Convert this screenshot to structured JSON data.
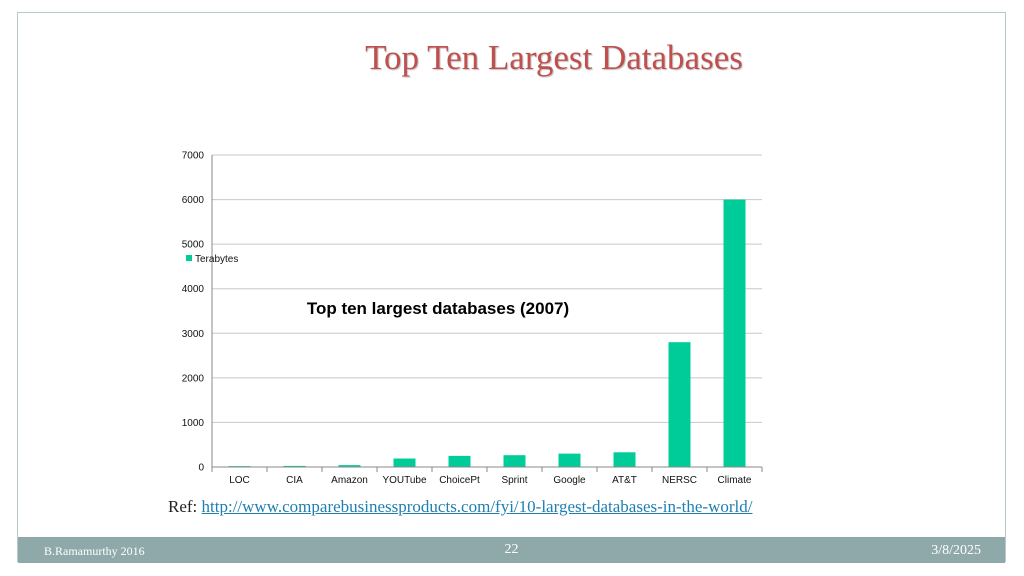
{
  "slide": {
    "title": "Top Ten Largest Databases",
    "ref_label": "Ref:",
    "ref_link": "http://www.comparebusinessproducts.com/fyi/10-largest-databases-in-the-world/",
    "footer_left": "B.Ramamurthy 2016",
    "footer_center": "22",
    "footer_right": "3/8/2025"
  },
  "colors": {
    "bar": "#00cc99",
    "grid": "#c8c8c8",
    "title": "#c0504d",
    "footer": "#8fa9aa"
  },
  "chart_data": {
    "type": "bar",
    "title": "Top ten largest databases (2007)",
    "categories": [
      "LOC",
      "CIA",
      "Amazon",
      "YOUTube",
      "ChoicePt",
      "Sprint",
      "Google",
      "AT&T",
      "NERSC",
      "Climate"
    ],
    "series": [
      {
        "name": "Terabytes",
        "values": [
          20,
          25,
          42,
          190,
          250,
          265,
          300,
          330,
          2800,
          6000
        ]
      }
    ],
    "ylim": [
      0,
      7000
    ],
    "yticks": [
      0,
      1000,
      2000,
      3000,
      4000,
      5000,
      6000,
      7000
    ],
    "xlabel": "",
    "ylabel": "",
    "grid": true,
    "legend_position": "left"
  }
}
